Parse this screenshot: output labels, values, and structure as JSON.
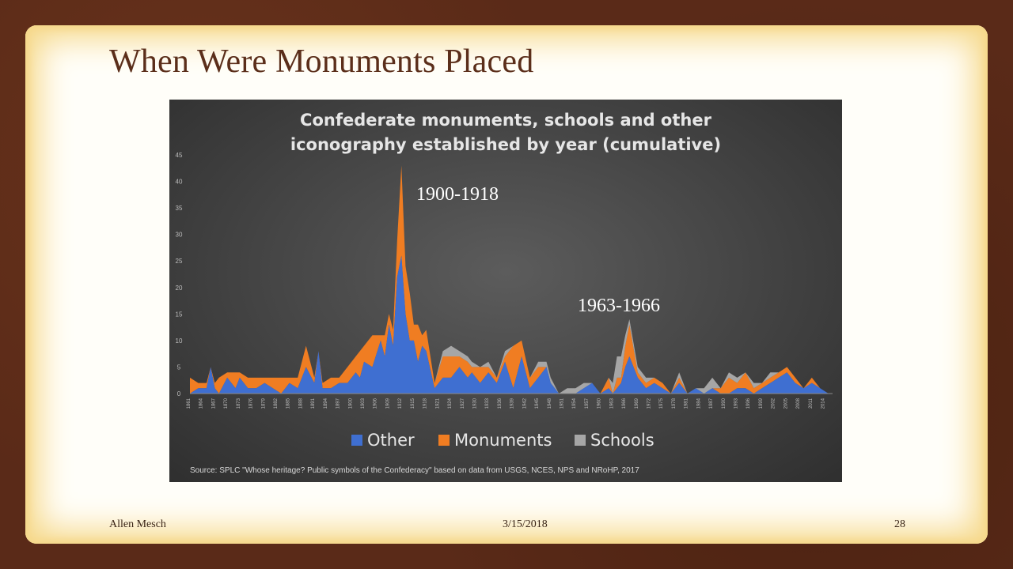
{
  "slide": {
    "title": "When Were Monuments Placed",
    "footer": {
      "author": "Allen Mesch",
      "date": "3/15/2018",
      "page": "28"
    }
  },
  "annotations": [
    "1900-1918",
    "1963-1966"
  ],
  "colors": {
    "other": "#3f6fd1",
    "monuments": "#f07d22",
    "schools": "#a6a6a6",
    "title_text": "#5b2e1a"
  },
  "chart_data": {
    "type": "area",
    "title": "Confederate monuments, schools and other iconography established by year (cumulative)",
    "source": "Source: SPLC \"Whose heritage? Public symbols of the Confederacy\" based on data from USGS, NCES, NPS and NRoHP, 2017",
    "ylim": [
      0,
      45
    ],
    "yticks": [
      "0",
      "5",
      "10",
      "15",
      "20",
      "25",
      "30",
      "35",
      "40",
      "45"
    ],
    "xlim": [
      1861,
      2016
    ],
    "legend_position": "bottom",
    "grid": false,
    "series": [
      {
        "name": "Other",
        "x": [
          1861,
          1863,
          1865,
          1866,
          1867,
          1868,
          1870,
          1872,
          1873,
          1875,
          1877,
          1879,
          1881,
          1883,
          1885,
          1887,
          1889,
          1891,
          1892,
          1893,
          1895,
          1897,
          1899,
          1901,
          1902,
          1903,
          1905,
          1907,
          1908,
          1909,
          1910,
          1911,
          1912,
          1913,
          1914,
          1915,
          1916,
          1917,
          1918,
          1920,
          1922,
          1924,
          1926,
          1928,
          1929,
          1931,
          1933,
          1935,
          1937,
          1939,
          1941,
          1943,
          1945,
          1947,
          1948,
          1950,
          1952,
          1954,
          1956,
          1958,
          1960,
          1962,
          1963,
          1964,
          1965,
          1966,
          1967,
          1969,
          1971,
          1973,
          1975,
          1977,
          1979,
          1981,
          1983,
          1985,
          1987,
          1989,
          1991,
          1993,
          1995,
          1997,
          1999,
          2001,
          2003,
          2005,
          2007,
          2009,
          2011,
          2013,
          2015
        ],
        "y": [
          0,
          1,
          1,
          5,
          1,
          0,
          3,
          1,
          3,
          1,
          1,
          2,
          1,
          0,
          2,
          1,
          5,
          2,
          8,
          1,
          1,
          2,
          2,
          4,
          3,
          6,
          5,
          10,
          7,
          13,
          9,
          22,
          26,
          15,
          10,
          10,
          6,
          9,
          8,
          1,
          3,
          3,
          5,
          3,
          4,
          2,
          4,
          2,
          6,
          1,
          7,
          1,
          3,
          5,
          2,
          0,
          0,
          0,
          1,
          2,
          0,
          1,
          0,
          1,
          2,
          5,
          7,
          3,
          1,
          2,
          1,
          0,
          2,
          0,
          1,
          0,
          1,
          0,
          0,
          1,
          1,
          0,
          1,
          2,
          3,
          4,
          2,
          1,
          2,
          1,
          0
        ]
      },
      {
        "name": "Monuments",
        "x": [
          1861,
          1863,
          1865,
          1866,
          1867,
          1868,
          1870,
          1872,
          1873,
          1875,
          1877,
          1879,
          1881,
          1883,
          1885,
          1887,
          1889,
          1891,
          1892,
          1893,
          1895,
          1897,
          1899,
          1901,
          1902,
          1903,
          1905,
          1907,
          1908,
          1909,
          1910,
          1911,
          1912,
          1913,
          1914,
          1915,
          1916,
          1917,
          1918,
          1920,
          1922,
          1924,
          1926,
          1928,
          1929,
          1931,
          1933,
          1935,
          1937,
          1939,
          1941,
          1943,
          1945,
          1947,
          1948,
          1950,
          1952,
          1954,
          1956,
          1958,
          1960,
          1962,
          1963,
          1964,
          1965,
          1966,
          1967,
          1969,
          1971,
          1973,
          1975,
          1977,
          1979,
          1981,
          1983,
          1985,
          1987,
          1989,
          1991,
          1993,
          1995,
          1997,
          1999,
          2001,
          2003,
          2005,
          2007,
          2009,
          2011,
          2013,
          2015
        ],
        "y": [
          3,
          1,
          1,
          0,
          1,
          3,
          1,
          3,
          1,
          2,
          2,
          1,
          2,
          3,
          1,
          2,
          4,
          1,
          0,
          1,
          2,
          1,
          3,
          3,
          5,
          3,
          6,
          1,
          4,
          2,
          3,
          7,
          17,
          9,
          9,
          3,
          7,
          2,
          4,
          1,
          4,
          4,
          2,
          3,
          1,
          3,
          1,
          1,
          1,
          8,
          3,
          2,
          2,
          0,
          0,
          0,
          0,
          0,
          0,
          0,
          0,
          2,
          0,
          2,
          1,
          4,
          6,
          1,
          1,
          1,
          1,
          0,
          1,
          0,
          0,
          0,
          0,
          1,
          3,
          1,
          3,
          1,
          1,
          1,
          1,
          1,
          1,
          0,
          1,
          0,
          0
        ]
      },
      {
        "name": "Schools",
        "x": [
          1861,
          1863,
          1865,
          1866,
          1867,
          1868,
          1870,
          1872,
          1873,
          1875,
          1877,
          1879,
          1881,
          1883,
          1885,
          1887,
          1889,
          1891,
          1892,
          1893,
          1895,
          1897,
          1899,
          1901,
          1902,
          1903,
          1905,
          1907,
          1908,
          1909,
          1910,
          1911,
          1912,
          1913,
          1914,
          1915,
          1916,
          1917,
          1918,
          1920,
          1922,
          1924,
          1926,
          1928,
          1929,
          1931,
          1933,
          1935,
          1937,
          1939,
          1941,
          1943,
          1945,
          1947,
          1948,
          1950,
          1952,
          1954,
          1956,
          1958,
          1960,
          1962,
          1963,
          1964,
          1965,
          1966,
          1967,
          1969,
          1971,
          1973,
          1975,
          1977,
          1979,
          1981,
          1983,
          1985,
          1987,
          1989,
          1991,
          1993,
          1995,
          1997,
          1999,
          2001,
          2003,
          2005,
          2007,
          2009,
          2011,
          2013,
          2015
        ],
        "y": [
          0,
          0,
          0,
          0,
          0,
          0,
          0,
          0,
          0,
          0,
          0,
          0,
          0,
          0,
          0,
          0,
          0,
          0,
          0,
          0,
          0,
          0,
          0,
          0,
          0,
          0,
          0,
          0,
          0,
          0,
          0,
          0,
          0,
          0,
          0,
          0,
          0,
          0,
          0,
          0,
          1,
          2,
          1,
          1,
          1,
          0,
          1,
          0,
          1,
          0,
          0,
          0,
          1,
          1,
          1,
          0,
          1,
          1,
          1,
          0,
          0,
          0,
          2,
          4,
          4,
          2,
          1,
          1,
          1,
          0,
          0,
          0,
          1,
          0,
          0,
          1,
          2,
          0,
          1,
          1,
          0,
          1,
          0,
          1,
          0,
          0,
          0,
          0,
          0,
          0,
          0
        ]
      }
    ]
  }
}
